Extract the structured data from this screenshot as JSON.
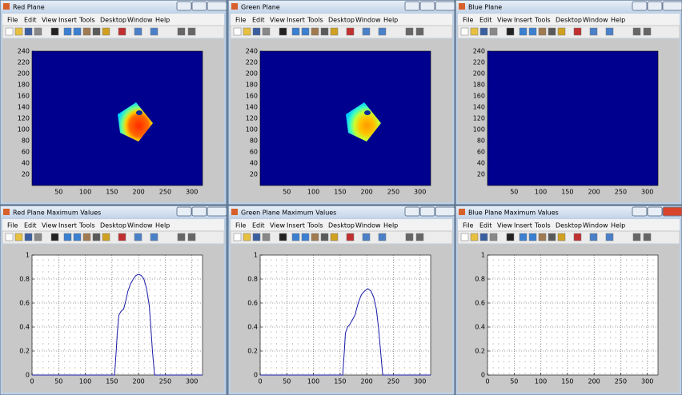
{
  "windows": [
    {
      "title": "Red Plane",
      "menu": [
        "File",
        "Edit",
        "View",
        "Insert",
        "Tools",
        "Desktop",
        "Window",
        "Help"
      ],
      "plot": {
        "xlim": [
          0,
          320
        ],
        "ylim": [
          0,
          240
        ],
        "xticks": [
          50,
          100,
          150,
          200,
          250,
          300
        ],
        "yticks": [
          20,
          40,
          60,
          80,
          100,
          120,
          140,
          160,
          180,
          200,
          220,
          240
        ]
      }
    },
    {
      "title": "Green Plane",
      "menu": [
        "File",
        "Edit",
        "View",
        "Insert",
        "Tools",
        "Desktop",
        "Window",
        "Help"
      ],
      "plot": {
        "xlim": [
          0,
          320
        ],
        "ylim": [
          0,
          240
        ],
        "xticks": [
          50,
          100,
          150,
          200,
          250,
          300
        ],
        "yticks": [
          20,
          40,
          60,
          80,
          100,
          120,
          140,
          160,
          180,
          200,
          220,
          240
        ]
      }
    },
    {
      "title": "Blue Plane",
      "menu": [
        "File",
        "Edit",
        "View",
        "Insert",
        "Tools",
        "Desktop",
        "Window",
        "Help"
      ],
      "plot": {
        "xlim": [
          0,
          320
        ],
        "ylim": [
          0,
          240
        ],
        "xticks": [
          50,
          100,
          150,
          200,
          250,
          300
        ],
        "yticks": [
          20,
          40,
          60,
          80,
          100,
          120,
          140,
          160,
          180,
          200,
          220,
          240
        ]
      }
    },
    {
      "title": "Red Plane Maximum Values",
      "menu": [
        "File",
        "Edit",
        "View",
        "Insert",
        "Tools",
        "Desktop",
        "Window",
        "Help"
      ],
      "plot": {
        "xlim": [
          0,
          320
        ],
        "ylim": [
          0,
          1
        ],
        "xticks": [
          0,
          50,
          100,
          150,
          200,
          250,
          300
        ],
        "yticks": [
          0,
          0.2,
          0.4,
          0.6,
          0.8,
          1
        ],
        "grid": true,
        "line": {
          "color": "#1a1aa8",
          "x": [
            0,
            155,
            158,
            160,
            163,
            167,
            172,
            176,
            180,
            185,
            190,
            195,
            200,
            205,
            210,
            215,
            220,
            223,
            226,
            230,
            320
          ],
          "y": [
            0,
            0,
            0.2,
            0.35,
            0.5,
            0.53,
            0.55,
            0.62,
            0.7,
            0.76,
            0.8,
            0.83,
            0.84,
            0.83,
            0.8,
            0.72,
            0.58,
            0.4,
            0.2,
            0,
            0
          ]
        }
      }
    },
    {
      "title": "Green Plane Maximum Values",
      "menu": [
        "File",
        "Edit",
        "View",
        "Insert",
        "Tools",
        "Desktop",
        "Window",
        "Help"
      ],
      "plot": {
        "xlim": [
          0,
          320
        ],
        "ylim": [
          0,
          1
        ],
        "xticks": [
          0,
          50,
          100,
          150,
          200,
          250,
          300
        ],
        "yticks": [
          0,
          0.2,
          0.4,
          0.6,
          0.8,
          1
        ],
        "grid": true,
        "line": {
          "color": "#1a1aa8",
          "x": [
            0,
            155,
            158,
            160,
            164,
            168,
            172,
            178,
            184,
            190,
            196,
            202,
            208,
            213,
            218,
            222,
            226,
            230,
            320
          ],
          "y": [
            0,
            0,
            0.2,
            0.35,
            0.4,
            0.42,
            0.45,
            0.5,
            0.6,
            0.67,
            0.7,
            0.72,
            0.7,
            0.65,
            0.55,
            0.4,
            0.2,
            0,
            0
          ]
        }
      }
    },
    {
      "title": "Blue Plane Maximum Values",
      "menu": [
        "File",
        "Edit",
        "View",
        "Insert",
        "Tools",
        "Desktop",
        "Window",
        "Help"
      ],
      "plot": {
        "xlim": [
          0,
          320
        ],
        "ylim": [
          0,
          1
        ],
        "xticks": [
          0,
          50,
          100,
          150,
          200,
          250,
          300
        ],
        "yticks": [
          0,
          0.2,
          0.4,
          0.6,
          0.8,
          1
        ],
        "grid": true
      }
    }
  ]
}
